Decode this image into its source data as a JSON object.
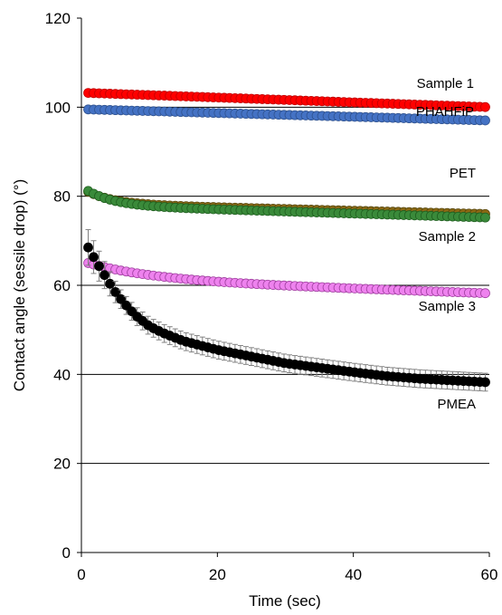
{
  "chart_data": {
    "type": "scatter",
    "title": "",
    "xlabel": "Time (sec)",
    "ylabel": "Contact angle (sessile drop) (°)",
    "xlim": [
      0,
      60
    ],
    "ylim": [
      0,
      120
    ],
    "xticks": [
      "0",
      "20",
      "40",
      "60"
    ],
    "yticks": [
      "0",
      "20",
      "40",
      "60",
      "80",
      "100",
      "120"
    ],
    "grid": "horizontal",
    "legend": "none",
    "series": [
      {
        "name": "Sample 1",
        "label": "Sample 1",
        "color": "#ff0000",
        "edge": "#c00000",
        "x_start": 1,
        "x_end": 60,
        "y_start": 103.2,
        "y_end": 100.0,
        "decay": "linear",
        "err": 0.6
      },
      {
        "name": "PHAHFiP",
        "label": "PHAHFiP",
        "color": "#4472c4",
        "edge": "#2f528f",
        "x_start": 1,
        "x_end": 60,
        "y_start": 99.5,
        "y_end": 97.0,
        "decay": "linear",
        "err": 0.6
      },
      {
        "name": "PET",
        "label": "PET",
        "color": "#8b6914",
        "edge": "#5a4a10",
        "x_start": 1,
        "x_end": 60,
        "y_start": 81.0,
        "y_end": 76.0,
        "decay": "exp",
        "tau": 4,
        "err": 0.6
      },
      {
        "name": "Sample 2",
        "label": "Sample 2",
        "color": "#3a8a3a",
        "edge": "#1f5f1f",
        "x_start": 1,
        "x_end": 60,
        "y_start": 81.2,
        "y_end": 75.2,
        "decay": "exp",
        "tau": 4,
        "err": 0.6
      },
      {
        "name": "Sample 3",
        "label": "Sample 3",
        "color": "#ee82ee",
        "edge": "#a040a0",
        "x_start": 1,
        "x_end": 60,
        "y_start": 65.0,
        "y_end": 58.2,
        "decay": "exp",
        "tau": 10,
        "err": 0.6
      },
      {
        "name": "PMEA",
        "label": "PMEA",
        "color": "#000000",
        "edge": "#000000",
        "x_start": 1,
        "x_end": 60,
        "y_start": 68.5,
        "y_end": 38.2,
        "decay": "pmea",
        "err": 2.0
      }
    ]
  }
}
